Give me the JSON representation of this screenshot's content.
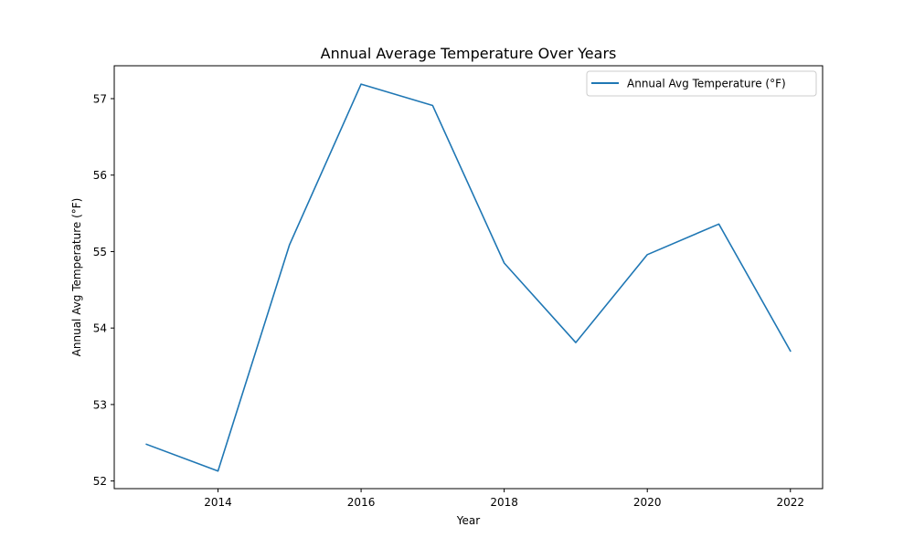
{
  "chart_data": {
    "type": "line",
    "title": "Annual Average Temperature Over Years",
    "xlabel": "Year",
    "ylabel": "Annual Avg Temperature (°F)",
    "x": [
      2013,
      2014,
      2015,
      2016,
      2017,
      2018,
      2019,
      2020,
      2021,
      2022
    ],
    "xlim": [
      2012.55,
      2022.45
    ],
    "ylim": [
      51.9,
      57.43
    ],
    "xticks": [
      2014,
      2016,
      2018,
      2020,
      2022
    ],
    "yticks": [
      52,
      53,
      54,
      55,
      56,
      57
    ],
    "grid": false,
    "legend_position": "top-right",
    "series": [
      {
        "name": "Annual Avg Temperature (°F)",
        "color": "#1f77b4",
        "values": [
          52.48,
          52.13,
          55.09,
          57.19,
          56.91,
          54.85,
          53.81,
          54.96,
          55.36,
          53.7
        ]
      }
    ]
  }
}
